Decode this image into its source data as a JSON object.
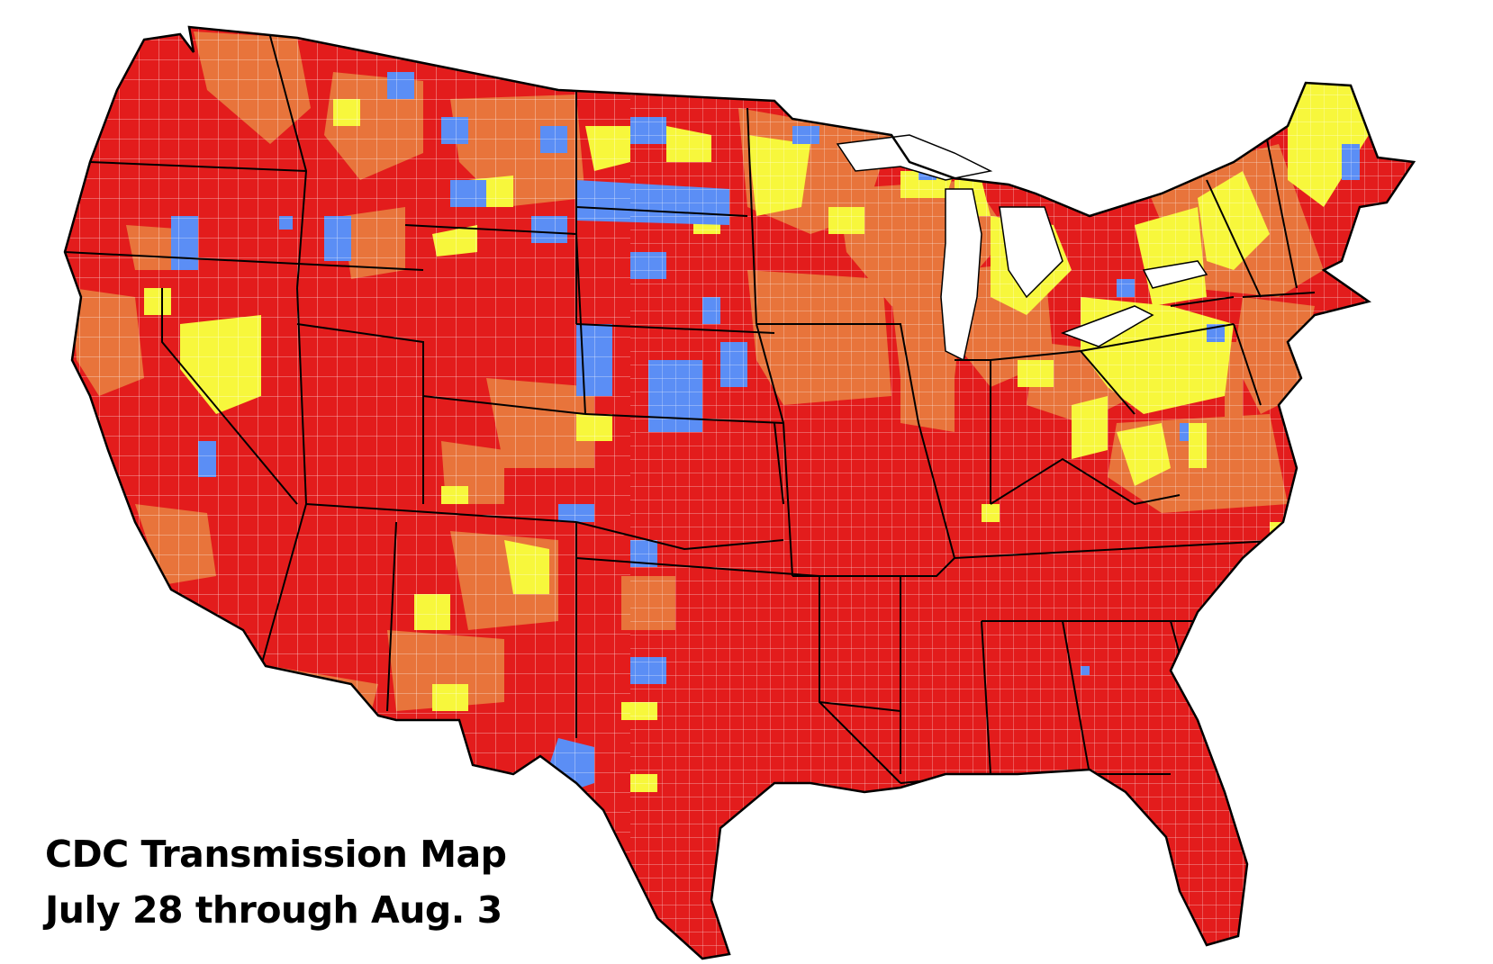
{
  "caption": {
    "line1": "CDC Transmission Map",
    "line2": "July 28 through Aug. 3"
  },
  "colors": {
    "high": "#e31c1c",
    "substantial": "#e8743b",
    "moderate": "#f7f73c",
    "low": "#5b8ef5",
    "county_border": "#ffffff",
    "state_border": "#000000",
    "background": "#ffffff"
  },
  "map_type": "US county choropleth"
}
